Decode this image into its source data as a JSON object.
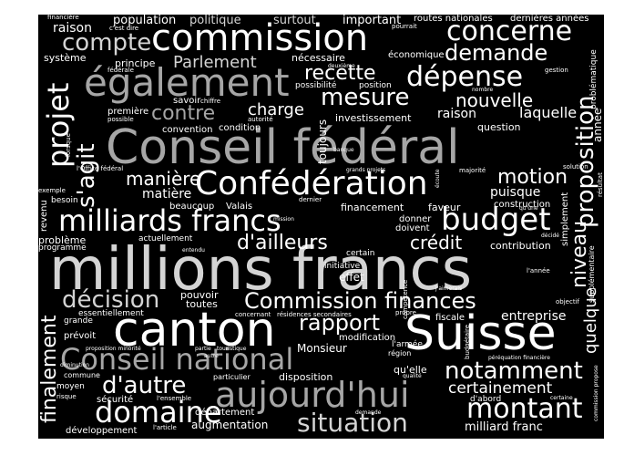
{
  "word_cloud": {
    "background": "#000000",
    "colors": {
      "white": "#ffffff",
      "light": "#d4d4d4",
      "gray": "#a6a6a6",
      "dim": "#8c8c8c"
    },
    "words": {
      "millions_francs": "millions francs",
      "conseil_federal": "Conseil fédéral",
      "canton": "canton",
      "suisse": "Suisse",
      "commission": "commission",
      "egalement": "également",
      "confederation": "Confédération",
      "milliards_francs": "milliards francs",
      "aujourd_hui": "aujourd'hui",
      "conseil_national": "Conseil national",
      "budget": "budget",
      "domaine": "domaine",
      "situation": "situation",
      "montant": "montant",
      "concerne": "concerne",
      "compte": "compte",
      "projet": "projet",
      "proposition": "proposition",
      "commission_finances": "Commission finances",
      "decision": "décision",
      "rapport": "rapport",
      "notamment": "notamment",
      "depense": "dépense",
      "mesure": "mesure",
      "demande": "demande",
      "recette": "recette",
      "nouvelle": "nouvelle",
      "contre": "contre",
      "s_agit": "s'agit",
      "d_ailleurs": "d'ailleurs",
      "d_autre": "d'autre",
      "finalement": "finalement",
      "niveau": "niveau",
      "credit": "crédit",
      "motion": "motion",
      "maniere": "manière",
      "parlement": "Parlement",
      "charge": "charge",
      "laquelle": "laquelle",
      "raison": "raison",
      "raison2": "raison",
      "certainement": "certainement",
      "quelque": "quelque",
      "entreprise": "entreprise",
      "puisque": "puisque",
      "matiere": "matière",
      "population": "population",
      "politique": "politique",
      "surtout": "surtout",
      "important": "important",
      "routes_nationales": "routes nationales",
      "dernieres_annees": "dernières années",
      "systeme": "système",
      "principe": "principe",
      "necessaire": "nécessaire",
      "economique": "économique",
      "possibilite": "possibilité",
      "position": "position",
      "investissement": "investissement",
      "question": "question",
      "annee": "année",
      "problematique": "problématique",
      "premiere": "première",
      "convention": "convention",
      "condition": "condition",
      "toujours": "toujours",
      "financement": "financement",
      "faveur": "faveur",
      "beaucoup": "beaucoup",
      "valais": "Valais",
      "construction": "construction",
      "contribution": "contribution",
      "actuellement": "actuellement",
      "certain": "certain",
      "initiative": "initiative",
      "donner": "donner",
      "doivent": "doivent",
      "effet": "effet",
      "probleme": "problème",
      "programme": "programme",
      "revenu": "revenu",
      "besoin": "besoin",
      "exemple": "exemple",
      "pouvoir": "pouvoir",
      "toutes": "toutes",
      "grande": "grande",
      "essentiellement": "essentiellement",
      "fiscale": "fiscale",
      "prevoit": "prévoit",
      "monsieur": "Monsieur",
      "modification": "modification",
      "l_armee": "l'armée",
      "region": "région",
      "qu_elle": "qu'elle",
      "disposition": "disposition",
      "particulier": "particulier",
      "securite": "sécurité",
      "moyen": "moyen",
      "commune": "commune",
      "augmentation": "augmentation",
      "developpement": "développement",
      "departement": "département",
      "milliard_franc": "milliard franc",
      "d_abord": "d'abord",
      "risque": "risque",
      "simplement": "simplement",
      "supplementaire": "supplémentaire",
      "l_office_federal": "l'Office fédéral",
      "financiere": "financière",
      "c_est_dire": "c'est dire",
      "federale": "fédérale",
      "pourrait": "pourrait",
      "gestion": "gestion",
      "deuxieme": "deuxième",
      "nombre": "nombre",
      "savoir": "savoir",
      "chiffre": "chiffre",
      "autorite": "autorité",
      "possible": "possible",
      "lorsque": "lorsque",
      "banque": "banque",
      "grands_projets": "grands projets",
      "majorite": "majorité",
      "solution": "solution",
      "resultat": "résultat",
      "dernier": "dernier",
      "mission": "mission",
      "entendu": "entendu",
      "qu_une": "qu'une",
      "decide": "décidé",
      "l_annee": "l'année",
      "objectif": "objectif",
      "j_aimerais": "j'aimerais",
      "competence": "compétence",
      "propre": "propre",
      "concernant": "concernant",
      "residences_secondaires": "résidences secondaires",
      "partie": "partie",
      "touristique": "touristique",
      "autre": "autre",
      "proposition_minorite": "proposition minorité",
      "diminution": "diminution",
      "l_ensemble": "l'ensemble",
      "l_article": "l'article",
      "demande2": "demande",
      "qualite": "qualité",
      "budgetaire": "budgétaire",
      "perequation_financiere": "péréquation financière",
      "certaine": "certaine",
      "commission_propose": "commission propose",
      "ecoute": "écoute"
    }
  }
}
